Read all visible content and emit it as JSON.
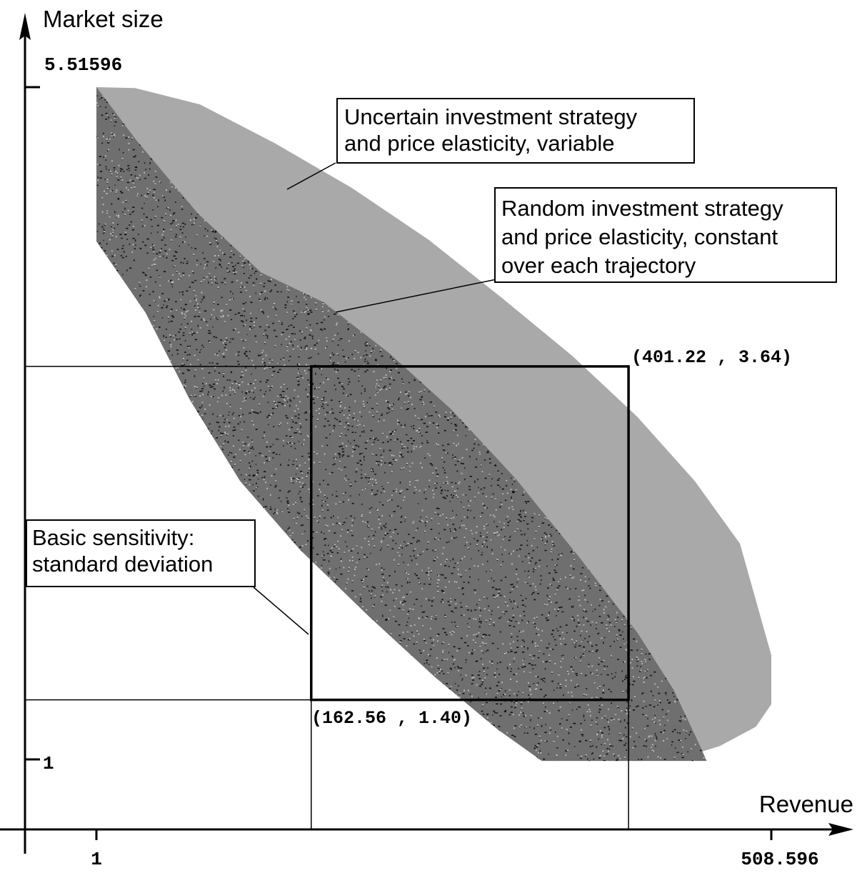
{
  "chart_data": {
    "type": "scatter",
    "title": "",
    "xlabel": "Revenue",
    "ylabel": "Market size",
    "xlim": [
      1,
      508.596
    ],
    "ylim": [
      1,
      5.51596
    ],
    "ticks": {
      "x": [
        {
          "value": 1,
          "label": "1"
        },
        {
          "value": 508.596,
          "label": "508.596"
        }
      ],
      "y": [
        {
          "value": 1,
          "label": "1"
        },
        {
          "value": 5.51596,
          "label": "5.51596"
        }
      ]
    },
    "grid": false,
    "legend": "none",
    "regions": [
      {
        "name": "uncertain",
        "label": "Uncertain investment strategy\nand price elasticity, variable",
        "fill": "#a9a9a9",
        "outline": [
          [
            1,
            5.51596
          ],
          [
            30,
            5.51
          ],
          [
            79,
            5.4
          ],
          [
            135,
            5.14
          ],
          [
            193,
            4.84
          ],
          [
            251,
            4.49
          ],
          [
            306,
            4.1
          ],
          [
            359,
            3.71
          ],
          [
            408,
            3.3
          ],
          [
            451,
            2.87
          ],
          [
            485,
            2.45
          ],
          [
            508.6,
            1.7
          ],
          [
            508.6,
            1.37
          ],
          [
            497,
            1.22
          ],
          [
            470,
            1.09
          ],
          [
            441,
            1.01
          ],
          [
            411,
            0.99
          ],
          [
            387,
            0.99
          ],
          [
            359,
            1.06
          ],
          [
            306,
            1.33
          ],
          [
            252,
            1.72
          ],
          [
            198,
            2.12
          ],
          [
            146,
            2.67
          ],
          [
            114,
            3.16
          ],
          [
            82,
            3.6
          ],
          [
            41,
            4.09
          ],
          [
            1,
            4.48
          ]
        ]
      },
      {
        "name": "random",
        "label": "Random investment strategy\nand price elasticity, constant\nover each trajectory",
        "fill": "#111111",
        "outline": [
          [
            1,
            5.51596
          ],
          [
            31,
            5.16
          ],
          [
            77,
            4.67
          ],
          [
            125,
            4.27
          ],
          [
            172,
            4.07
          ],
          [
            221,
            3.73
          ],
          [
            268,
            3.35
          ],
          [
            316,
            2.89
          ],
          [
            364,
            2.36
          ],
          [
            408,
            1.85
          ],
          [
            435,
            1.47
          ],
          [
            454,
            1.11
          ],
          [
            460,
            0.99
          ],
          [
            336,
            0.99
          ],
          [
            303,
            1.2
          ],
          [
            256,
            1.55
          ],
          [
            206,
            1.96
          ],
          [
            154,
            2.41
          ],
          [
            109,
            2.87
          ],
          [
            71,
            3.42
          ],
          [
            38,
            4.0
          ],
          [
            1,
            4.48
          ]
        ]
      }
    ],
    "box": {
      "label": "Basic sensitivity:\nstandard deviation",
      "min": {
        "x": 162.56,
        "y": 1.4,
        "label": "(162.56 , 1.40)"
      },
      "max": {
        "x": 401.22,
        "y": 3.64,
        "label": "(401.22 , 3.64)"
      }
    }
  }
}
